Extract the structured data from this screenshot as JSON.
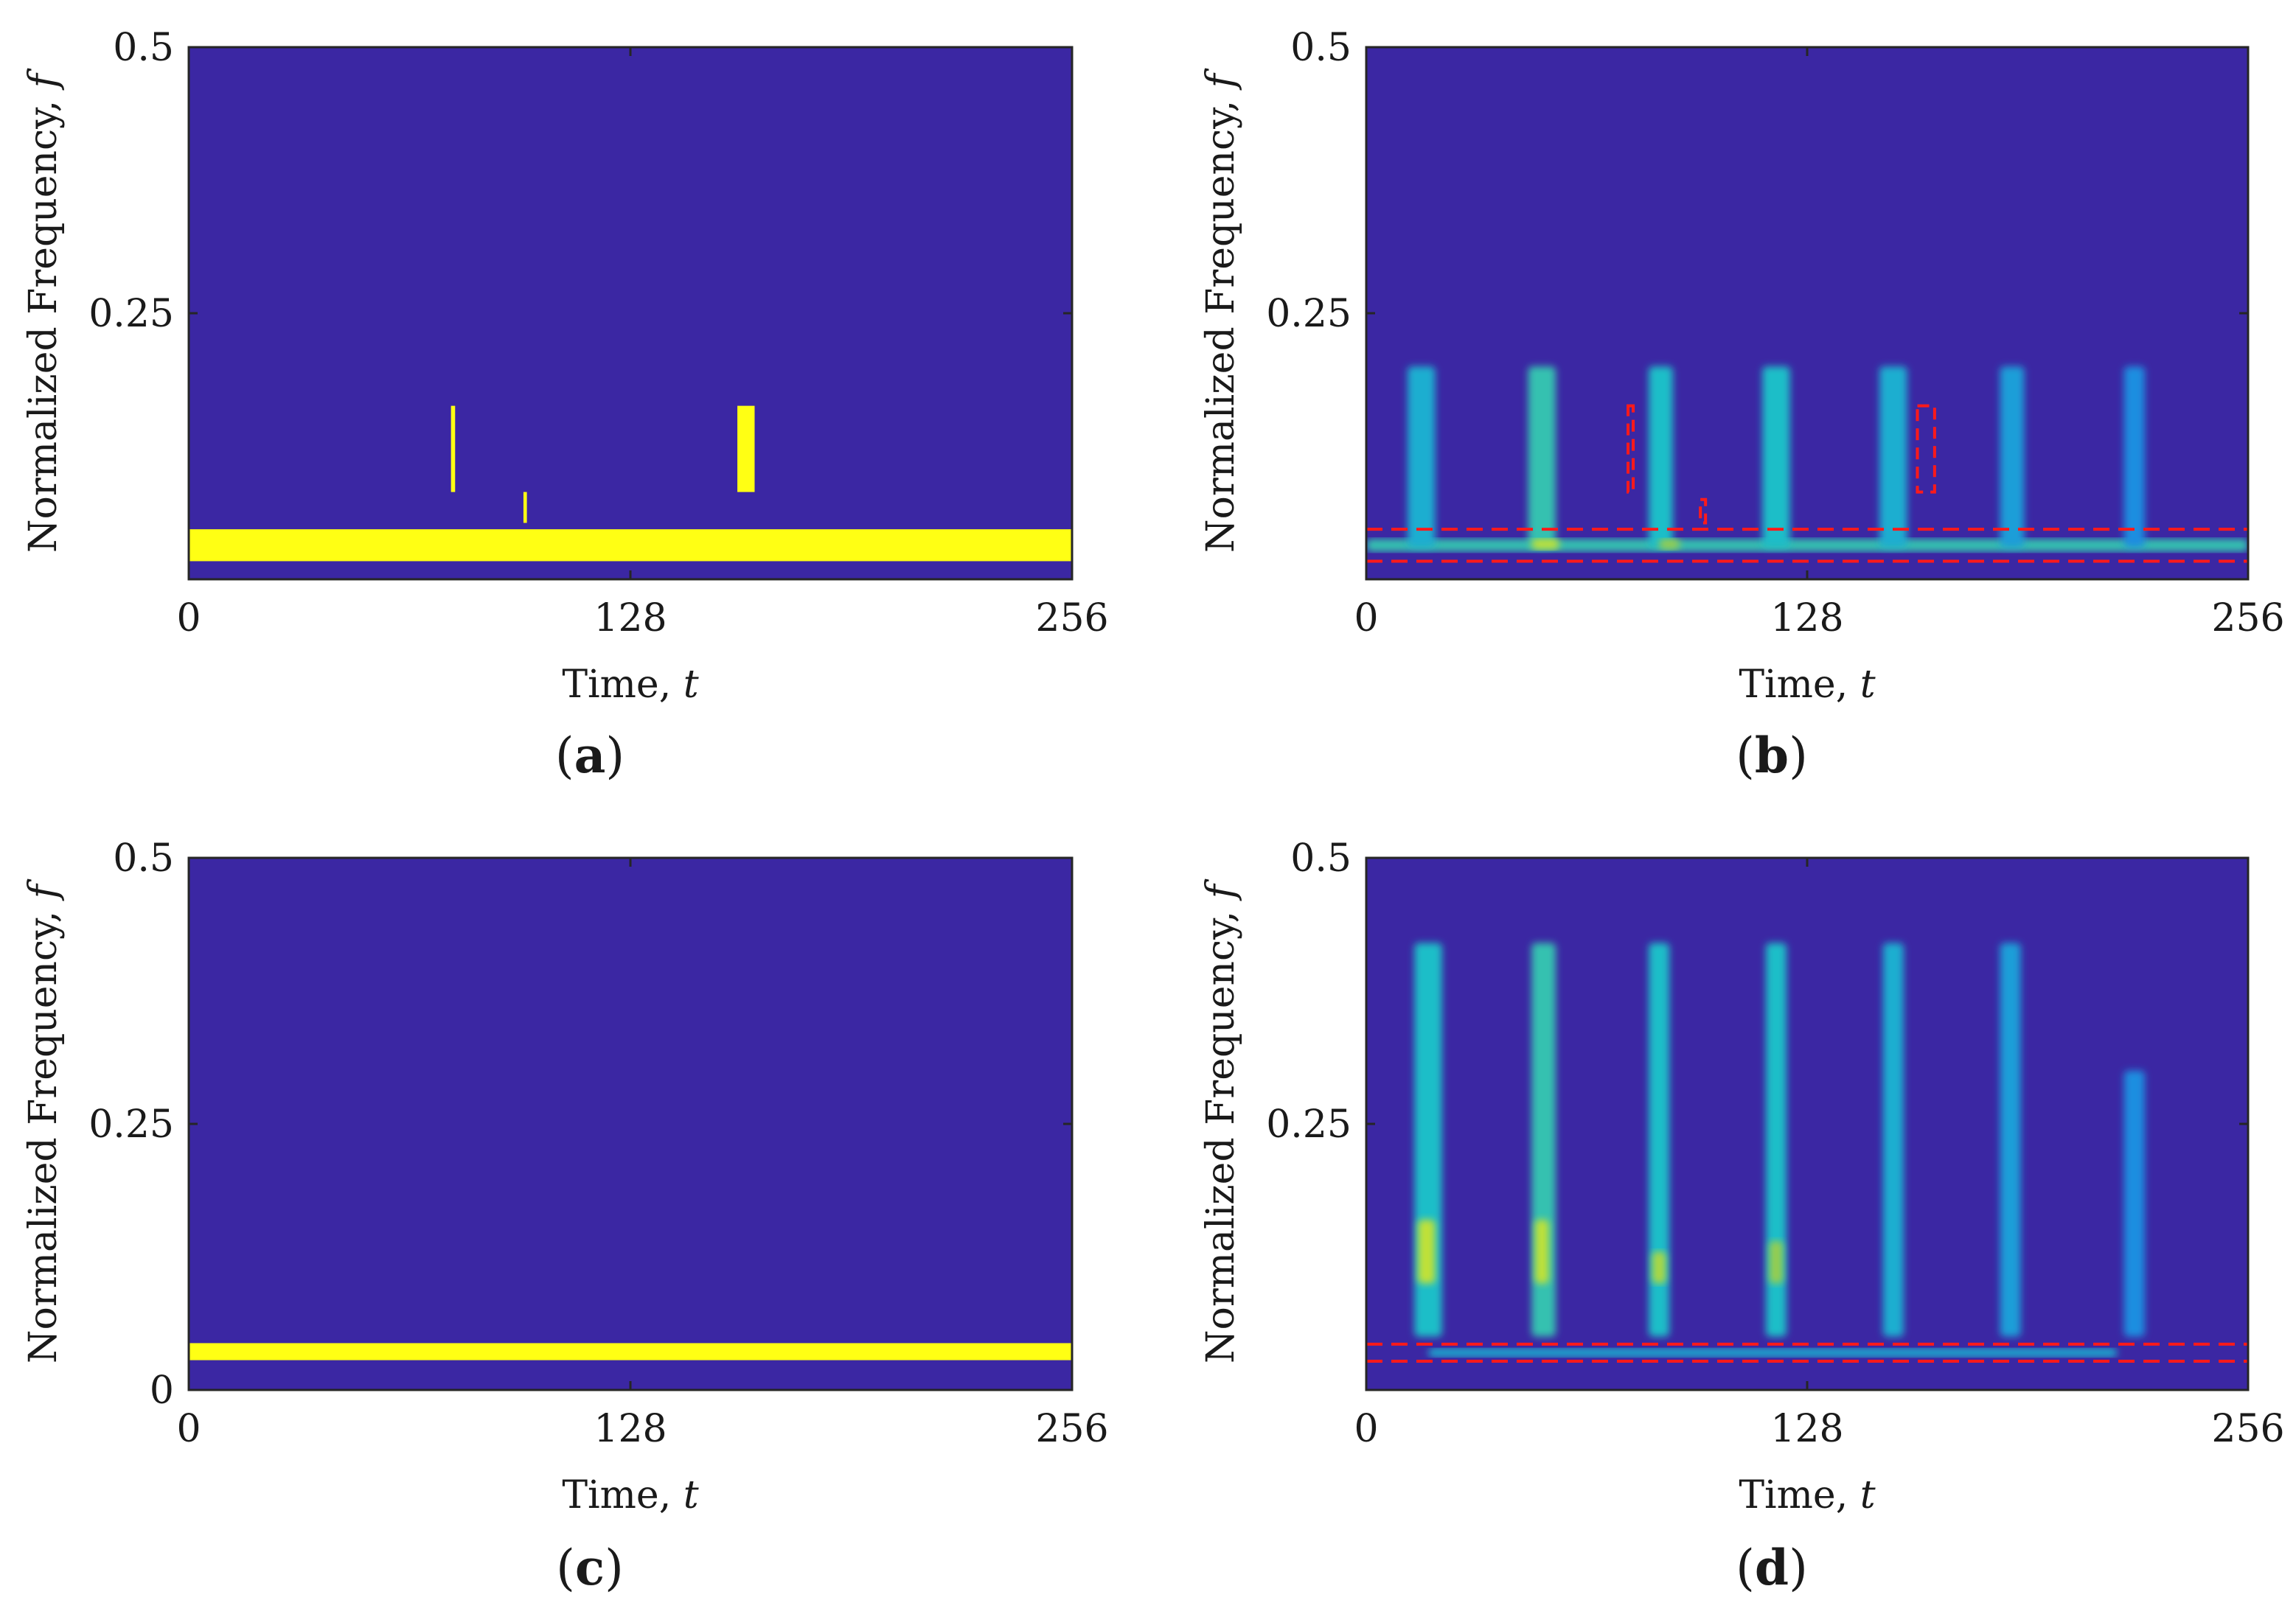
{
  "figure": {
    "background_color": "#3b27a3",
    "signal_color": "#ffff14",
    "marker_color": "#ff1a1a"
  },
  "chart_data": [
    {
      "id": "a",
      "caption": "(a)",
      "caption_letter": "a",
      "type": "heatmap",
      "xlabel": "Time,",
      "xlabel_var": "t",
      "ylabel": "Normalized Frequency,",
      "ylabel_var": "f",
      "xlim": [
        0,
        256
      ],
      "ylim": [
        0,
        0.5
      ],
      "xticks": [
        0,
        128,
        256
      ],
      "xtick_labels": [
        "0",
        "128",
        "256"
      ],
      "yticks": [
        0.25,
        0.5
      ],
      "ytick_labels": [
        "0.25",
        "0.5"
      ],
      "components": [
        {
          "name": "tone",
          "t0": 0,
          "t1": 256,
          "f0": 0.017,
          "f1": 0.047,
          "intensity": 1
        },
        {
          "name": "chirp-1",
          "t0": 76,
          "t1": 77.2,
          "f0": 0.082,
          "f1": 0.163,
          "intensity": 1
        },
        {
          "name": "chirp-2",
          "t0": 97,
          "t1": 98,
          "f0": 0.053,
          "f1": 0.082,
          "intensity": 1
        },
        {
          "name": "chirp-3",
          "t0": 159,
          "t1": 164,
          "f0": 0.082,
          "f1": 0.163,
          "intensity": 1
        }
      ],
      "dashed_lines": [],
      "dashed_boxes": []
    },
    {
      "id": "b",
      "caption": "(b)",
      "caption_letter": "b",
      "type": "heatmap",
      "xlabel": "Time,",
      "xlabel_var": "t",
      "ylabel": "Normalized Frequency,",
      "ylabel_var": "f",
      "xlim": [
        0,
        256
      ],
      "ylim": [
        0,
        0.5
      ],
      "xticks": [
        0,
        128,
        256
      ],
      "xtick_labels": [
        "0",
        "128",
        "256"
      ],
      "yticks": [
        0.25,
        0.5
      ],
      "ytick_labels": [
        "0.25",
        "0.5"
      ],
      "components": [
        {
          "name": "tone-band",
          "t0": 0,
          "t1": 256,
          "f0": 0.026,
          "f1": 0.038,
          "intensity": 0.55
        },
        {
          "name": "burst-1",
          "t0": 12,
          "t1": 20,
          "f0": 0.03,
          "f1": 0.2,
          "intensity": 0.45
        },
        {
          "name": "burst-2",
          "t0": 47,
          "t1": 55,
          "f0": 0.03,
          "f1": 0.2,
          "intensity": 0.55
        },
        {
          "name": "burst-3",
          "t0": 82,
          "t1": 89,
          "f0": 0.03,
          "f1": 0.2,
          "intensity": 0.5
        },
        {
          "name": "burst-4",
          "t0": 115,
          "t1": 123,
          "f0": 0.03,
          "f1": 0.2,
          "intensity": 0.5
        },
        {
          "name": "burst-5",
          "t0": 149,
          "t1": 157,
          "f0": 0.03,
          "f1": 0.2,
          "intensity": 0.45
        },
        {
          "name": "burst-6",
          "t0": 184,
          "t1": 191,
          "f0": 0.03,
          "f1": 0.2,
          "intensity": 0.4
        },
        {
          "name": "burst-7",
          "t0": 220,
          "t1": 226,
          "f0": 0.03,
          "f1": 0.2,
          "intensity": 0.35
        },
        {
          "name": "hot-spot",
          "t0": 48,
          "t1": 56,
          "f0": 0.028,
          "f1": 0.038,
          "intensity": 0.85
        },
        {
          "name": "hot-spot-2",
          "t0": 85,
          "t1": 91,
          "f0": 0.028,
          "f1": 0.038,
          "intensity": 0.75
        }
      ],
      "dashed_lines": [
        0.047,
        0.017
      ],
      "dashed_boxes": [
        {
          "t0": 76,
          "t1": 77.5,
          "f0": 0.082,
          "f1": 0.163
        },
        {
          "t0": 97,
          "t1": 98.5,
          "f0": 0.053,
          "f1": 0.075
        },
        {
          "t0": 160,
          "t1": 165,
          "f0": 0.082,
          "f1": 0.163
        }
      ]
    },
    {
      "id": "c",
      "caption": "(c)",
      "caption_letter": "c",
      "type": "heatmap",
      "xlabel": "Time,",
      "xlabel_var": "t",
      "ylabel": "Normalized Frequency,",
      "ylabel_var": "f",
      "xlim": [
        0,
        256
      ],
      "ylim": [
        0,
        0.5
      ],
      "xticks": [
        0,
        128,
        256
      ],
      "xtick_labels": [
        "0",
        "128",
        "256"
      ],
      "yticks": [
        0,
        0.25,
        0.5
      ],
      "ytick_labels": [
        "0",
        "0.25",
        "0.5"
      ],
      "components": [
        {
          "name": "tone",
          "t0": 0,
          "t1": 256,
          "f0": 0.028,
          "f1": 0.044,
          "intensity": 1
        }
      ],
      "dashed_lines": [],
      "dashed_boxes": []
    },
    {
      "id": "d",
      "caption": "(d)",
      "caption_letter": "d",
      "type": "heatmap",
      "xlabel": "Time,",
      "xlabel_var": "t",
      "ylabel": "Normalized Frequency,",
      "ylabel_var": "f",
      "xlim": [
        0,
        256
      ],
      "ylim": [
        0,
        0.5
      ],
      "xticks": [
        0,
        128,
        256
      ],
      "xtick_labels": [
        "0",
        "128",
        "256"
      ],
      "yticks": [
        0.25,
        0.5
      ],
      "ytick_labels": [
        "0.25",
        "0.5"
      ],
      "components": [
        {
          "name": "tone-band",
          "t0": 18,
          "t1": 218,
          "f0": 0.031,
          "f1": 0.039,
          "intensity": 0.45
        },
        {
          "name": "burst-1",
          "t0": 14,
          "t1": 22,
          "f0": 0.05,
          "f1": 0.42,
          "intensity": 0.5
        },
        {
          "name": "burst-2",
          "t0": 48,
          "t1": 55,
          "f0": 0.05,
          "f1": 0.42,
          "intensity": 0.55
        },
        {
          "name": "burst-3",
          "t0": 82,
          "t1": 88,
          "f0": 0.05,
          "f1": 0.42,
          "intensity": 0.5
        },
        {
          "name": "burst-4",
          "t0": 116,
          "t1": 122,
          "f0": 0.05,
          "f1": 0.42,
          "intensity": 0.5
        },
        {
          "name": "burst-5",
          "t0": 150,
          "t1": 156,
          "f0": 0.05,
          "f1": 0.42,
          "intensity": 0.45
        },
        {
          "name": "burst-6",
          "t0": 184,
          "t1": 190,
          "f0": 0.05,
          "f1": 0.42,
          "intensity": 0.4
        },
        {
          "name": "burst-7",
          "t0": 220,
          "t1": 226,
          "f0": 0.05,
          "f1": 0.3,
          "intensity": 0.35
        },
        {
          "name": "core-1",
          "t0": 15,
          "t1": 20,
          "f0": 0.1,
          "f1": 0.16,
          "intensity": 0.85
        },
        {
          "name": "core-2",
          "t0": 49,
          "t1": 53,
          "f0": 0.1,
          "f1": 0.16,
          "intensity": 0.85
        },
        {
          "name": "core-3",
          "t0": 83,
          "t1": 87,
          "f0": 0.1,
          "f1": 0.13,
          "intensity": 0.8
        },
        {
          "name": "core-4",
          "t0": 117,
          "t1": 121,
          "f0": 0.1,
          "f1": 0.14,
          "intensity": 0.75
        }
      ],
      "dashed_lines": [
        0.043,
        0.027
      ],
      "dashed_boxes": []
    }
  ]
}
